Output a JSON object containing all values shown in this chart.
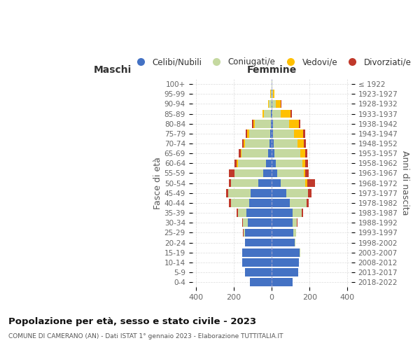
{
  "age_groups": [
    "0-4",
    "5-9",
    "10-14",
    "15-19",
    "20-24",
    "25-29",
    "30-34",
    "35-39",
    "40-44",
    "45-49",
    "50-54",
    "55-59",
    "60-64",
    "65-69",
    "70-74",
    "75-79",
    "80-84",
    "85-89",
    "90-94",
    "95-99",
    "100+"
  ],
  "birth_years": [
    "2018-2022",
    "2013-2017",
    "2008-2012",
    "2003-2007",
    "1998-2002",
    "1993-1997",
    "1988-1992",
    "1983-1987",
    "1978-1982",
    "1973-1977",
    "1968-1972",
    "1963-1967",
    "1958-1962",
    "1953-1957",
    "1948-1952",
    "1943-1947",
    "1938-1942",
    "1933-1937",
    "1928-1932",
    "1923-1927",
    "≤ 1922"
  ],
  "males": {
    "celibi": [
      115,
      140,
      155,
      155,
      140,
      140,
      125,
      135,
      120,
      110,
      70,
      45,
      30,
      20,
      12,
      8,
      6,
      4,
      2,
      1,
      0
    ],
    "coniugati": [
      0,
      0,
      0,
      0,
      2,
      8,
      28,
      45,
      95,
      120,
      145,
      150,
      150,
      140,
      128,
      112,
      82,
      38,
      12,
      5,
      2
    ],
    "vedovi": [
      0,
      0,
      0,
      0,
      0,
      0,
      0,
      0,
      0,
      0,
      2,
      2,
      4,
      4,
      8,
      10,
      10,
      8,
      5,
      2,
      0
    ],
    "divorziati": [
      0,
      0,
      0,
      0,
      0,
      5,
      5,
      4,
      10,
      10,
      8,
      28,
      14,
      12,
      8,
      8,
      5,
      0,
      0,
      0,
      0
    ]
  },
  "females": {
    "nubili": [
      110,
      140,
      145,
      148,
      120,
      115,
      110,
      110,
      95,
      78,
      48,
      28,
      20,
      14,
      10,
      8,
      5,
      3,
      2,
      1,
      0
    ],
    "coniugate": [
      0,
      0,
      0,
      2,
      5,
      15,
      22,
      48,
      88,
      112,
      130,
      140,
      142,
      135,
      125,
      110,
      85,
      45,
      18,
      5,
      2
    ],
    "vedove": [
      0,
      0,
      0,
      0,
      0,
      0,
      0,
      0,
      2,
      2,
      8,
      10,
      15,
      28,
      35,
      48,
      52,
      52,
      28,
      8,
      2
    ],
    "divorziate": [
      0,
      0,
      0,
      0,
      0,
      0,
      5,
      8,
      10,
      18,
      42,
      18,
      15,
      10,
      10,
      10,
      10,
      5,
      2,
      0,
      0
    ]
  },
  "colors": {
    "celibi": "#4472c4",
    "coniugati": "#c5d9a0",
    "vedovi": "#ffc000",
    "divorziati": "#c0392b"
  },
  "xlim": 420,
  "title": "Popolazione per età, sesso e stato civile - 2023",
  "subtitle": "COMUNE DI CAMERANO (AN) - Dati ISTAT 1° gennaio 2023 - Elaborazione TUTTITALIA.IT",
  "xlabel_left": "Maschi",
  "xlabel_right": "Femmine",
  "ylabel_left": "Fasce di età",
  "ylabel_right": "Anni di nascita",
  "legend_labels": [
    "Celibi/Nubili",
    "Coniugati/e",
    "Vedovi/e",
    "Divorziati/e"
  ],
  "background_color": "#ffffff"
}
